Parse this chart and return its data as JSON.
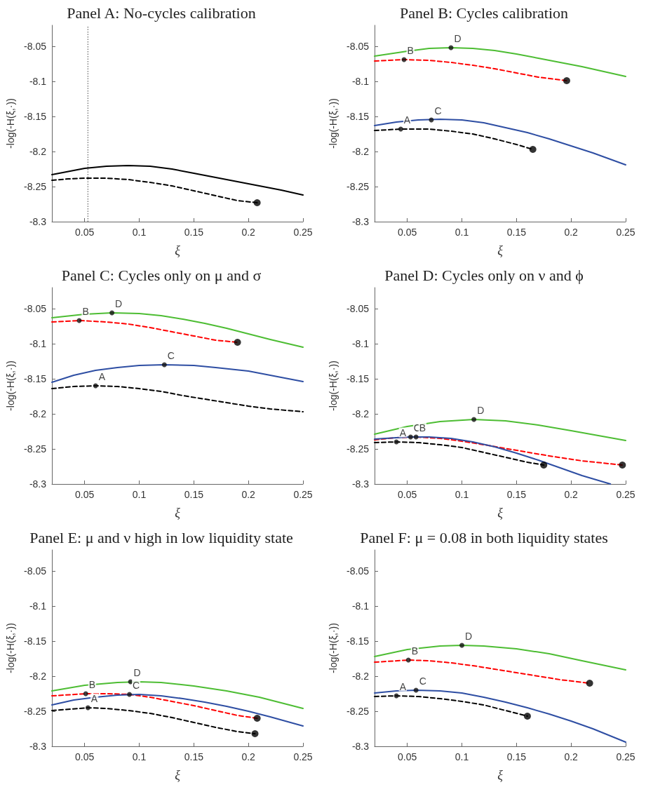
{
  "chart_data": [
    {
      "type": "line",
      "title": "Panel A: No-cycles calibration",
      "xlabel": "ξ",
      "ylabel": "-log(-H(ξ,·))",
      "xlim": [
        0.02,
        0.25
      ],
      "xticks": [
        0.05,
        0.1,
        0.15,
        0.2,
        0.25
      ],
      "ylim": [
        -8.3,
        -8.02
      ],
      "yticks": [
        -8.3,
        -8.25,
        -8.2,
        -8.15,
        -8.1,
        -8.05
      ],
      "grid": false,
      "marker": "none",
      "series": [
        {
          "color": "#000000",
          "line_style": "solid",
          "x": [
            0.02,
            0.05,
            0.07,
            0.09,
            0.11,
            0.13,
            0.15,
            0.17,
            0.19,
            0.21,
            0.23,
            0.25
          ],
          "values": [
            -8.233,
            -8.224,
            -8.221,
            -8.22,
            -8.221,
            -8.225,
            -8.231,
            -8.237,
            -8.243,
            -8.249,
            -8.255,
            -8.262
          ]
        },
        {
          "color": "#000000",
          "line_style": "dashed",
          "x": [
            0.02,
            0.035,
            0.05,
            0.07,
            0.09,
            0.11,
            0.13,
            0.15,
            0.17,
            0.19,
            0.208
          ],
          "values": [
            -8.241,
            -8.239,
            -8.238,
            -8.238,
            -8.24,
            -8.244,
            -8.249,
            -8.256,
            -8.263,
            -8.27,
            -8.273
          ]
        },
        {
          "type": "scatter",
          "color": "#000000",
          "marker": "circle",
          "x": [
            0.208
          ],
          "values": [
            -8.273
          ]
        }
      ],
      "ref_lines": [
        {
          "axis": "x",
          "value": 0.053,
          "color": "#808080",
          "line_style": "dotted"
        }
      ]
    },
    {
      "type": "line",
      "title": "Panel B: Cycles calibration",
      "xlabel": "ξ",
      "ylabel": "-log(-H(ξ,·))",
      "xlim": [
        0.02,
        0.25
      ],
      "xticks": [
        0.05,
        0.1,
        0.15,
        0.2,
        0.25
      ],
      "ylim": [
        -8.3,
        -8.02
      ],
      "yticks": [
        -8.3,
        -8.25,
        -8.2,
        -8.15,
        -8.1,
        -8.05
      ],
      "grid": false,
      "marker": "none",
      "series": [
        {
          "color": "#4dbd33",
          "line_style": "solid",
          "x": [
            0.02,
            0.05,
            0.07,
            0.09,
            0.11,
            0.13,
            0.15,
            0.17,
            0.19,
            0.21,
            0.23,
            0.25
          ],
          "values": [
            -8.064,
            -8.057,
            -8.053,
            -8.052,
            -8.053,
            -8.056,
            -8.061,
            -8.067,
            -8.073,
            -8.079,
            -8.086,
            -8.093
          ]
        },
        {
          "color": "#ff0000",
          "line_style": "dashed",
          "x": [
            0.02,
            0.047,
            0.07,
            0.09,
            0.11,
            0.13,
            0.15,
            0.17,
            0.196
          ],
          "values": [
            -8.071,
            -8.069,
            -8.07,
            -8.073,
            -8.077,
            -8.082,
            -8.088,
            -8.094,
            -8.099
          ]
        },
        {
          "color": "#2e4ea3",
          "line_style": "solid",
          "x": [
            0.02,
            0.04,
            0.06,
            0.08,
            0.1,
            0.12,
            0.14,
            0.16,
            0.18,
            0.2,
            0.22,
            0.25
          ],
          "values": [
            -8.163,
            -8.158,
            -8.155,
            -8.154,
            -8.155,
            -8.159,
            -8.166,
            -8.173,
            -8.182,
            -8.192,
            -8.202,
            -8.219
          ]
        },
        {
          "color": "#000000",
          "line_style": "dashed",
          "x": [
            0.02,
            0.044,
            0.07,
            0.09,
            0.11,
            0.13,
            0.15,
            0.165
          ],
          "values": [
            -8.17,
            -8.168,
            -8.168,
            -8.171,
            -8.175,
            -8.182,
            -8.19,
            -8.197
          ]
        },
        {
          "type": "scatter",
          "color": "#000000",
          "marker": "circle",
          "x": [
            0.196,
            0.165
          ],
          "values": [
            -8.099,
            -8.197
          ]
        }
      ],
      "annotations": [
        {
          "text": "D",
          "x": 0.09,
          "y": -8.052
        },
        {
          "text": "B",
          "x": 0.047,
          "y": -8.069
        },
        {
          "text": "C",
          "x": 0.072,
          "y": -8.155
        },
        {
          "text": "A",
          "x": 0.044,
          "y": -8.168
        }
      ]
    },
    {
      "type": "line",
      "title": "Panel C: Cycles only on μ and σ",
      "xlabel": "ξ",
      "ylabel": "-log(-H(ξ,·))",
      "xlim": [
        0.02,
        0.25
      ],
      "xticks": [
        0.05,
        0.1,
        0.15,
        0.2,
        0.25
      ],
      "ylim": [
        -8.3,
        -8.02
      ],
      "yticks": [
        -8.3,
        -8.25,
        -8.2,
        -8.15,
        -8.1,
        -8.05
      ],
      "grid": false,
      "marker": "none",
      "series": [
        {
          "color": "#4dbd33",
          "line_style": "solid",
          "x": [
            0.02,
            0.05,
            0.075,
            0.1,
            0.12,
            0.14,
            0.16,
            0.18,
            0.2,
            0.22,
            0.25
          ],
          "values": [
            -8.063,
            -8.058,
            -8.056,
            -8.057,
            -8.06,
            -8.065,
            -8.071,
            -8.078,
            -8.086,
            -8.094,
            -8.105
          ]
        },
        {
          "color": "#ff0000",
          "line_style": "dashed",
          "x": [
            0.02,
            0.045,
            0.07,
            0.09,
            0.11,
            0.13,
            0.15,
            0.17,
            0.19
          ],
          "values": [
            -8.069,
            -8.067,
            -8.069,
            -8.072,
            -8.077,
            -8.083,
            -8.089,
            -8.095,
            -8.098
          ]
        },
        {
          "color": "#2e4ea3",
          "line_style": "solid",
          "x": [
            0.02,
            0.04,
            0.06,
            0.08,
            0.1,
            0.123,
            0.15,
            0.17,
            0.2,
            0.22,
            0.25
          ],
          "values": [
            -8.155,
            -8.145,
            -8.138,
            -8.134,
            -8.131,
            -8.13,
            -8.131,
            -8.134,
            -8.139,
            -8.145,
            -8.154
          ]
        },
        {
          "color": "#000000",
          "line_style": "dashed",
          "x": [
            0.02,
            0.04,
            0.06,
            0.08,
            0.1,
            0.12,
            0.14,
            0.16,
            0.18,
            0.2,
            0.22,
            0.25
          ],
          "values": [
            -8.164,
            -8.161,
            -8.16,
            -8.161,
            -8.164,
            -8.168,
            -8.174,
            -8.179,
            -8.184,
            -8.189,
            -8.193,
            -8.197
          ]
        },
        {
          "type": "scatter",
          "color": "#000000",
          "marker": "circle",
          "x": [
            0.19
          ],
          "values": [
            -8.098
          ]
        }
      ],
      "annotations": [
        {
          "text": "D",
          "x": 0.075,
          "y": -8.056
        },
        {
          "text": "B",
          "x": 0.045,
          "y": -8.067
        },
        {
          "text": "C",
          "x": 0.123,
          "y": -8.13
        },
        {
          "text": "A",
          "x": 0.06,
          "y": -8.16
        }
      ]
    },
    {
      "type": "line",
      "title": "Panel D: Cycles only on ν and ϕ",
      "xlabel": "ξ",
      "ylabel": "-log(-H(ξ,·))",
      "xlim": [
        0.02,
        0.25
      ],
      "xticks": [
        0.05,
        0.1,
        0.15,
        0.2,
        0.25
      ],
      "ylim": [
        -8.3,
        -8.02
      ],
      "yticks": [
        -8.3,
        -8.25,
        -8.2,
        -8.15,
        -8.1,
        -8.05
      ],
      "grid": false,
      "marker": "none",
      "series": [
        {
          "color": "#4dbd33",
          "line_style": "solid",
          "x": [
            0.02,
            0.05,
            0.08,
            0.111,
            0.14,
            0.17,
            0.2,
            0.25
          ],
          "values": [
            -8.229,
            -8.218,
            -8.211,
            -8.208,
            -8.21,
            -8.216,
            -8.224,
            -8.238
          ]
        },
        {
          "color": "#ff0000",
          "line_style": "dashed",
          "x": [
            0.02,
            0.04,
            0.058,
            0.08,
            0.1,
            0.12,
            0.15,
            0.18,
            0.21,
            0.247
          ],
          "values": [
            -8.237,
            -8.234,
            -8.233,
            -8.235,
            -8.239,
            -8.244,
            -8.252,
            -8.26,
            -8.267,
            -8.273
          ]
        },
        {
          "color": "#2e4ea3",
          "line_style": "solid",
          "x": [
            0.02,
            0.04,
            0.053,
            0.07,
            0.09,
            0.11,
            0.13,
            0.15,
            0.17,
            0.19,
            0.21,
            0.236
          ],
          "values": [
            -8.236,
            -8.234,
            -8.233,
            -8.233,
            -8.235,
            -8.24,
            -8.247,
            -8.256,
            -8.266,
            -8.277,
            -8.288,
            -8.3
          ]
        },
        {
          "color": "#000000",
          "line_style": "dashed",
          "x": [
            0.02,
            0.04,
            0.06,
            0.08,
            0.1,
            0.12,
            0.14,
            0.16,
            0.175
          ],
          "values": [
            -8.241,
            -8.24,
            -8.241,
            -8.244,
            -8.248,
            -8.255,
            -8.262,
            -8.269,
            -8.273
          ]
        },
        {
          "type": "scatter",
          "color": "#000000",
          "marker": "circle",
          "x": [
            0.175,
            0.247
          ],
          "values": [
            -8.273,
            -8.273
          ]
        }
      ],
      "annotations": [
        {
          "text": "D",
          "x": 0.111,
          "y": -8.208
        },
        {
          "text": "C",
          "x": 0.053,
          "y": -8.233
        },
        {
          "text": "B",
          "x": 0.058,
          "y": -8.233
        },
        {
          "text": "A",
          "x": 0.04,
          "y": -8.24
        }
      ]
    },
    {
      "type": "line",
      "title": "Panel E: μ and ν high in low liquidity state",
      "xlabel": "ξ",
      "ylabel": "-log(-H(ξ,·))",
      "xlim": [
        0.02,
        0.25
      ],
      "xticks": [
        0.05,
        0.1,
        0.15,
        0.2,
        0.25
      ],
      "ylim": [
        -8.3,
        -8.02
      ],
      "yticks": [
        -8.3,
        -8.25,
        -8.2,
        -8.15,
        -8.1,
        -8.05
      ],
      "grid": false,
      "marker": "none",
      "series": [
        {
          "color": "#4dbd33",
          "line_style": "solid",
          "x": [
            0.02,
            0.05,
            0.08,
            0.1,
            0.12,
            0.15,
            0.18,
            0.21,
            0.25
          ],
          "values": [
            -8.221,
            -8.213,
            -8.209,
            -8.208,
            -8.209,
            -8.214,
            -8.221,
            -8.23,
            -8.246
          ]
        },
        {
          "color": "#ff0000",
          "line_style": "dashed",
          "x": [
            0.02,
            0.051,
            0.07,
            0.091,
            0.11,
            0.13,
            0.15,
            0.17,
            0.19,
            0.208
          ],
          "values": [
            -8.228,
            -8.225,
            -8.225,
            -8.226,
            -8.23,
            -8.236,
            -8.242,
            -8.249,
            -8.256,
            -8.26
          ]
        },
        {
          "color": "#2e4ea3",
          "line_style": "solid",
          "x": [
            0.02,
            0.04,
            0.06,
            0.08,
            0.1,
            0.12,
            0.14,
            0.16,
            0.18,
            0.2,
            0.22,
            0.25
          ],
          "values": [
            -8.241,
            -8.234,
            -8.23,
            -8.227,
            -8.226,
            -8.228,
            -8.232,
            -8.237,
            -8.243,
            -8.25,
            -8.258,
            -8.271
          ]
        },
        {
          "color": "#000000",
          "line_style": "dashed",
          "x": [
            0.02,
            0.053,
            0.07,
            0.09,
            0.11,
            0.13,
            0.15,
            0.17,
            0.19,
            0.206
          ],
          "values": [
            -8.249,
            -8.245,
            -8.246,
            -8.249,
            -8.253,
            -8.259,
            -8.266,
            -8.273,
            -8.279,
            -8.282
          ]
        },
        {
          "type": "scatter",
          "color": "#000000",
          "marker": "circle",
          "x": [
            0.208,
            0.206
          ],
          "values": [
            -8.26,
            -8.282
          ]
        }
      ],
      "annotations": [
        {
          "text": "D",
          "x": 0.092,
          "y": -8.208
        },
        {
          "text": "B",
          "x": 0.051,
          "y": -8.225
        },
        {
          "text": "C",
          "x": 0.091,
          "y": -8.226
        },
        {
          "text": "A",
          "x": 0.053,
          "y": -8.245
        }
      ]
    },
    {
      "type": "line",
      "title": "Panel F: μ = 0.08 in both liquidity states",
      "xlabel": "ξ",
      "ylabel": "-log(-H(ξ,·))",
      "xlim": [
        0.02,
        0.25
      ],
      "xticks": [
        0.05,
        0.1,
        0.15,
        0.2,
        0.25
      ],
      "ylim": [
        -8.3,
        -8.02
      ],
      "yticks": [
        -8.3,
        -8.25,
        -8.2,
        -8.15,
        -8.1,
        -8.05
      ],
      "grid": false,
      "marker": "none",
      "series": [
        {
          "color": "#4dbd33",
          "line_style": "solid",
          "x": [
            0.02,
            0.05,
            0.08,
            0.1,
            0.12,
            0.15,
            0.18,
            0.21,
            0.25
          ],
          "values": [
            -8.172,
            -8.162,
            -8.157,
            -8.156,
            -8.157,
            -8.161,
            -8.168,
            -8.178,
            -8.191
          ]
        },
        {
          "color": "#ff0000",
          "line_style": "dashed",
          "x": [
            0.02,
            0.051,
            0.07,
            0.09,
            0.11,
            0.13,
            0.15,
            0.17,
            0.19,
            0.217
          ],
          "values": [
            -8.18,
            -8.177,
            -8.178,
            -8.181,
            -8.185,
            -8.19,
            -8.195,
            -8.2,
            -8.205,
            -8.21
          ]
        },
        {
          "color": "#2e4ea3",
          "line_style": "solid",
          "x": [
            0.02,
            0.04,
            0.058,
            0.08,
            0.1,
            0.12,
            0.14,
            0.16,
            0.18,
            0.2,
            0.22,
            0.25
          ],
          "values": [
            -8.224,
            -8.221,
            -8.22,
            -8.221,
            -8.224,
            -8.23,
            -8.237,
            -8.245,
            -8.254,
            -8.264,
            -8.275,
            -8.294
          ]
        },
        {
          "color": "#000000",
          "line_style": "dashed",
          "x": [
            0.02,
            0.04,
            0.06,
            0.08,
            0.1,
            0.12,
            0.14,
            0.16
          ],
          "values": [
            -8.229,
            -8.228,
            -8.229,
            -8.232,
            -8.236,
            -8.241,
            -8.249,
            -8.257
          ]
        },
        {
          "type": "scatter",
          "color": "#000000",
          "marker": "circle",
          "x": [
            0.16,
            0.217
          ],
          "values": [
            -8.257,
            -8.21
          ]
        }
      ],
      "annotations": [
        {
          "text": "D",
          "x": 0.1,
          "y": -8.156
        },
        {
          "text": "B",
          "x": 0.051,
          "y": -8.177
        },
        {
          "text": "C",
          "x": 0.058,
          "y": -8.22
        },
        {
          "text": "A",
          "x": 0.04,
          "y": -8.228
        }
      ]
    }
  ]
}
